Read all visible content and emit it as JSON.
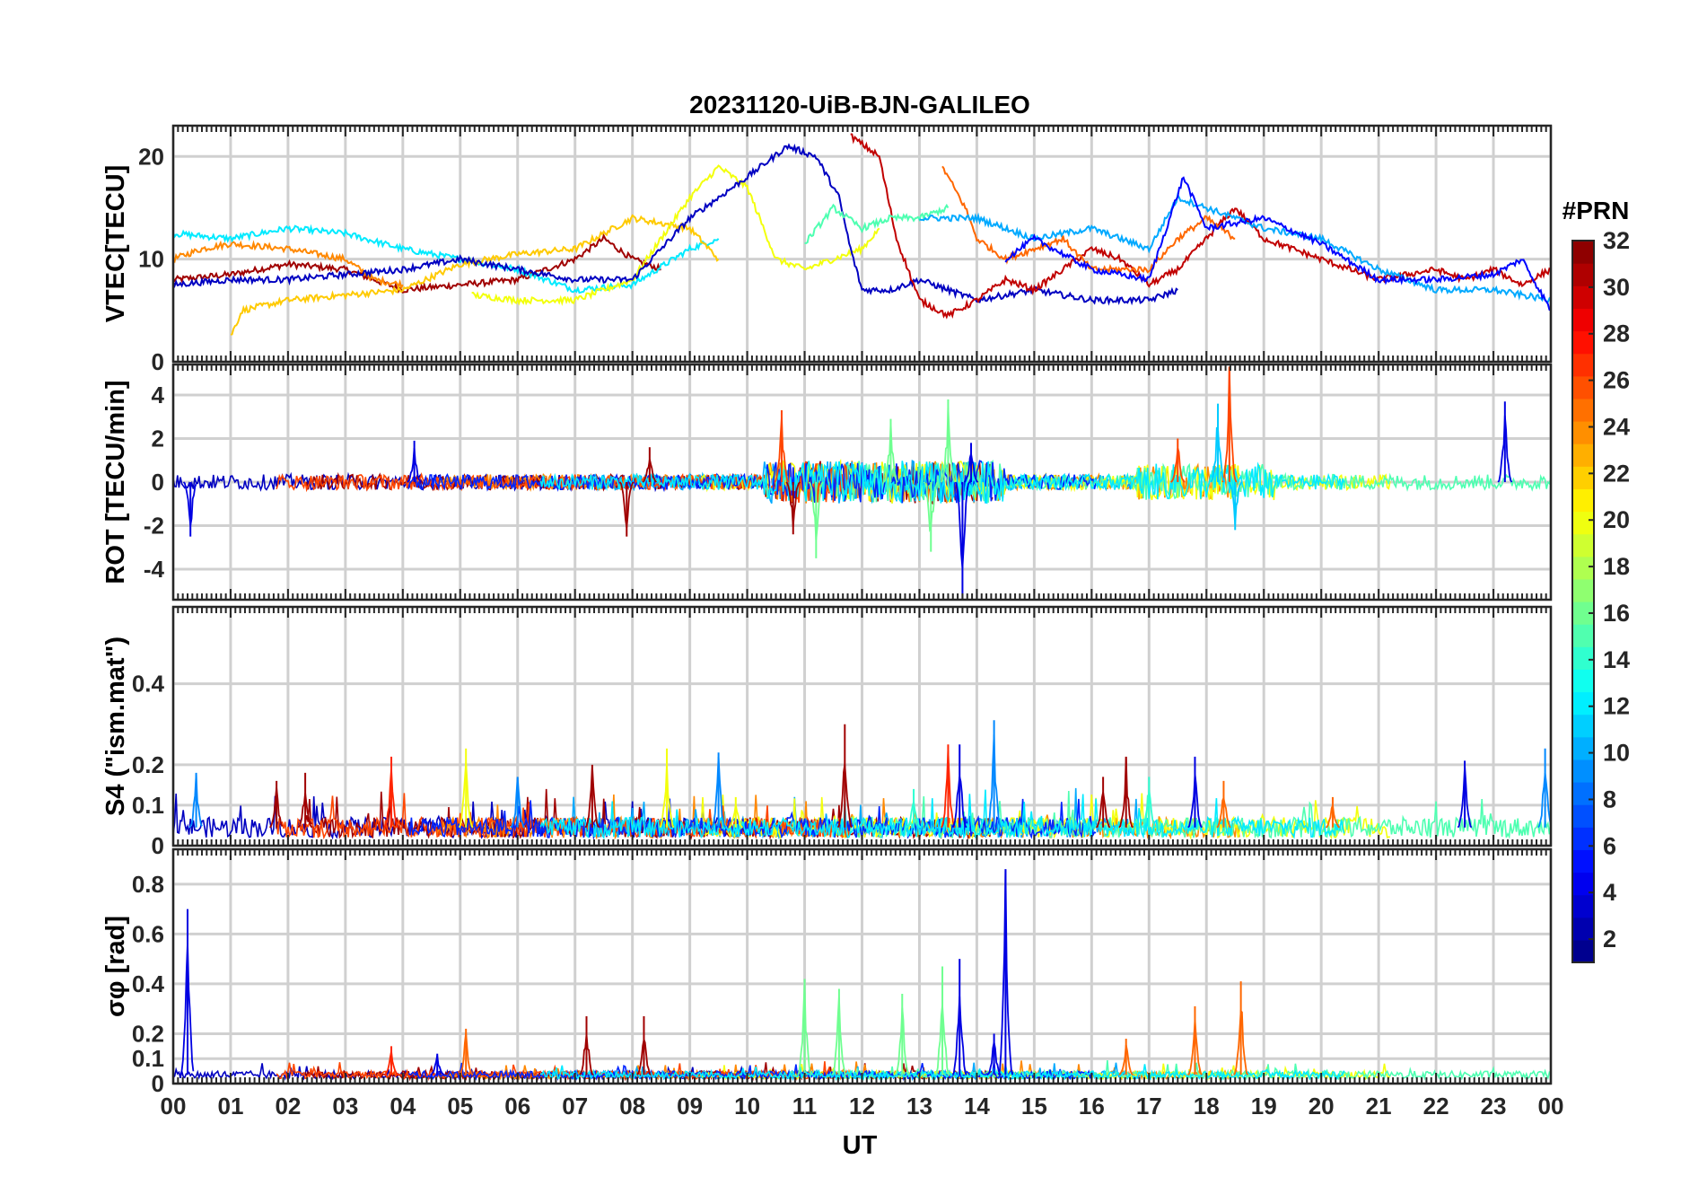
{
  "chart_data": {
    "type": "line",
    "title": "20231120-UiB-BJN-GALILEO",
    "xlabel": "UT",
    "x_ticks": [
      "00",
      "01",
      "02",
      "03",
      "04",
      "05",
      "06",
      "07",
      "08",
      "09",
      "10",
      "11",
      "12",
      "13",
      "14",
      "15",
      "16",
      "17",
      "18",
      "19",
      "20",
      "21",
      "22",
      "23",
      "00"
    ],
    "xlim": [
      0,
      24
    ],
    "colorbar": {
      "title": "#PRN",
      "range": [
        1,
        32
      ],
      "ticks": [
        "2",
        "4",
        "6",
        "8",
        "10",
        "12",
        "14",
        "16",
        "18",
        "20",
        "22",
        "24",
        "26",
        "28",
        "30",
        "32"
      ],
      "colormap": "jet"
    },
    "panels": [
      {
        "id": "vtec",
        "ylabel": "VTEC[TECU]",
        "ylim": [
          0,
          23
        ],
        "yticks": [
          "0",
          "10",
          "20"
        ],
        "series": [
          {
            "prn": 31,
            "values": [
              [
                0,
                8
              ],
              [
                1,
                8.5
              ],
              [
                2,
                9.5
              ],
              [
                3,
                9
              ],
              [
                4,
                7
              ],
              [
                5,
                7.5
              ],
              [
                6,
                8
              ],
              [
                7,
                10
              ],
              [
                7.5,
                12
              ],
              [
                8,
                10
              ],
              [
                8.5,
                9
              ]
            ]
          },
          {
            "prn": 24,
            "values": [
              [
                0,
                10
              ],
              [
                0.5,
                11
              ],
              [
                1,
                11.5
              ],
              [
                2,
                11
              ],
              [
                2.5,
                10.5
              ],
              [
                3,
                10
              ],
              [
                3.5,
                8
              ],
              [
                4,
                7.5
              ]
            ]
          },
          {
            "prn": 12,
            "values": [
              [
                0,
                12.5
              ],
              [
                1,
                12
              ],
              [
                2,
                13
              ],
              [
                3,
                12.5
              ],
              [
                4,
                11
              ],
              [
                5,
                10
              ],
              [
                6,
                9
              ],
              [
                7,
                7
              ],
              [
                8,
                7.5
              ],
              [
                9,
                11
              ],
              [
                9.5,
                12
              ]
            ]
          },
          {
            "prn": 22,
            "values": [
              [
                1,
                2.5
              ],
              [
                1.2,
                5
              ],
              [
                2,
                6
              ],
              [
                3,
                6.5
              ],
              [
                4,
                7
              ],
              [
                5,
                9.5
              ],
              [
                6,
                10.5
              ],
              [
                7,
                11
              ],
              [
                8,
                14
              ],
              [
                9,
                13
              ],
              [
                9.5,
                10
              ]
            ]
          },
          {
            "prn": 20,
            "values": [
              [
                5.2,
                6.5
              ],
              [
                6,
                6
              ],
              [
                7,
                6
              ],
              [
                8,
                8
              ],
              [
                9,
                16
              ],
              [
                9.5,
                19
              ],
              [
                10,
                17
              ],
              [
                10.5,
                10
              ],
              [
                11,
                9
              ],
              [
                12,
                11
              ],
              [
                12.3,
                13
              ]
            ]
          },
          {
            "prn": 3,
            "values": [
              [
                0,
                7.5
              ],
              [
                1,
                8
              ],
              [
                2,
                8
              ],
              [
                3,
                8.5
              ],
              [
                4,
                9
              ],
              [
                5,
                10
              ],
              [
                6,
                9
              ],
              [
                7,
                8
              ],
              [
                8,
                8
              ],
              [
                9,
                14
              ],
              [
                10,
                18
              ],
              [
                10.7,
                21
              ],
              [
                11.2,
                20
              ],
              [
                11.6,
                16
              ],
              [
                11.8,
                11
              ],
              [
                12,
                7
              ],
              [
                12.5,
                7
              ],
              [
                13,
                8
              ],
              [
                13.5,
                7
              ],
              [
                14,
                6
              ],
              [
                15,
                7
              ],
              [
                16,
                6
              ],
              [
                17,
                6
              ],
              [
                17.5,
                7
              ]
            ]
          },
          {
            "prn": 30,
            "values": [
              [
                11.8,
                22
              ],
              [
                12.3,
                20
              ],
              [
                12.6,
                12
              ],
              [
                13,
                6
              ],
              [
                13.5,
                4.5
              ],
              [
                14,
                6
              ],
              [
                14.5,
                8
              ],
              [
                15,
                7
              ],
              [
                15.5,
                9
              ],
              [
                16,
                11
              ],
              [
                16.5,
                10
              ],
              [
                17,
                7.5
              ],
              [
                17.5,
                9
              ],
              [
                18,
                12
              ],
              [
                18.5,
                15
              ],
              [
                19,
                12
              ],
              [
                20,
                10
              ],
              [
                20.5,
                9
              ],
              [
                21,
                8
              ],
              [
                22,
                9
              ],
              [
                22.5,
                8
              ],
              [
                23,
                9
              ],
              [
                23.5,
                7.5
              ],
              [
                24,
                9
              ]
            ]
          },
          {
            "prn": 15,
            "values": [
              [
                11,
                11.5
              ],
              [
                11.5,
                15
              ],
              [
                12,
                13
              ],
              [
                12.5,
                14
              ],
              [
                13,
                14
              ],
              [
                13.5,
                15
              ]
            ]
          },
          {
            "prn": 25,
            "values": [
              [
                13.4,
                19
              ],
              [
                13.8,
                15
              ],
              [
                14,
                12
              ],
              [
                14.5,
                10
              ],
              [
                15,
                11
              ],
              [
                15.5,
                12
              ],
              [
                16,
                9
              ],
              [
                16.5,
                9
              ],
              [
                17,
                9
              ],
              [
                17.5,
                12
              ],
              [
                18,
                14
              ],
              [
                18.5,
                12
              ]
            ]
          },
          {
            "prn": 10,
            "values": [
              [
                13,
                14
              ],
              [
                14,
                14
              ],
              [
                15,
                12
              ],
              [
                16,
                13
              ],
              [
                17,
                11
              ],
              [
                17.5,
                16
              ],
              [
                18,
                15
              ],
              [
                19,
                13
              ],
              [
                20,
                12
              ],
              [
                21,
                9
              ],
              [
                22,
                7
              ],
              [
                23,
                7
              ],
              [
                24,
                6
              ]
            ]
          },
          {
            "prn": 5,
            "values": [
              [
                14.5,
                10
              ],
              [
                15,
                12
              ],
              [
                16,
                9
              ],
              [
                17,
                8
              ],
              [
                17.6,
                18
              ],
              [
                18,
                13
              ],
              [
                19,
                14
              ],
              [
                20,
                11.5
              ],
              [
                21,
                8
              ],
              [
                22,
                8
              ],
              [
                23,
                8.5
              ],
              [
                23.5,
                10
              ],
              [
                24,
                5
              ]
            ]
          }
        ]
      },
      {
        "id": "rot",
        "ylabel": "ROT [TECU/min]",
        "ylim": [
          -5.4,
          5.4
        ],
        "yticks": [
          "-4",
          "-2",
          "0",
          "2",
          "4"
        ],
        "series": [
          {
            "prn": 4,
            "spikes": [
              [
                0.3,
                -2.5
              ],
              [
                4.2,
                1.9
              ],
              [
                13.75,
                -5.4
              ],
              [
                13.9,
                1.8
              ],
              [
                23.2,
                3.7
              ]
            ]
          },
          {
            "prn": 26,
            "spikes": [
              [
                10.6,
                3.3
              ],
              [
                18.4,
                5.3
              ],
              [
                17.5,
                2.0
              ]
            ]
          },
          {
            "prn": 16,
            "spikes": [
              [
                11.2,
                -3.5
              ],
              [
                13.5,
                3.8
              ],
              [
                13.2,
                -3.2
              ],
              [
                12.5,
                2.9
              ]
            ]
          },
          {
            "prn": 31,
            "spikes": [
              [
                7.9,
                -2.5
              ],
              [
                8.3,
                1.6
              ],
              [
                10.8,
                -2.4
              ]
            ]
          },
          {
            "prn": 11,
            "spikes": [
              [
                18.2,
                3.6
              ],
              [
                18.5,
                -2.2
              ]
            ]
          }
        ]
      },
      {
        "id": "s4",
        "ylabel": "S4 (\"ism.mat\")",
        "ylim": [
          0,
          0.59
        ],
        "yticks": [
          "0",
          "0.1",
          "0.2",
          "0.4"
        ],
        "series": [
          {
            "prn": 31,
            "spikes": [
              [
                1.8,
                0.16
              ],
              [
                2.3,
                0.18
              ],
              [
                11.7,
                0.3
              ],
              [
                16.2,
                0.17
              ],
              [
                16.6,
                0.22
              ],
              [
                7.3,
                0.2
              ]
            ]
          },
          {
            "prn": 27,
            "spikes": [
              [
                3.8,
                0.22
              ],
              [
                13.5,
                0.25
              ]
            ]
          },
          {
            "prn": 20,
            "spikes": [
              [
                5.1,
                0.24
              ],
              [
                8.6,
                0.24
              ],
              [
                9.8,
                0.12
              ]
            ]
          },
          {
            "prn": 9,
            "spikes": [
              [
                0.4,
                0.18
              ],
              [
                6.0,
                0.17
              ],
              [
                9.5,
                0.23
              ],
              [
                14.3,
                0.31
              ],
              [
                23.9,
                0.24
              ]
            ]
          },
          {
            "prn": 4,
            "spikes": [
              [
                13.7,
                0.25
              ],
              [
                17.8,
                0.22
              ],
              [
                22.5,
                0.21
              ]
            ]
          },
          {
            "prn": 14,
            "spikes": [
              [
                17,
                0.17
              ],
              [
                12.9,
                0.14
              ]
            ]
          },
          {
            "prn": 25,
            "spikes": [
              [
                18.3,
                0.16
              ],
              [
                20.2,
                0.12
              ]
            ]
          }
        ]
      },
      {
        "id": "sigma_phi",
        "ylabel": "σφ [rad]",
        "ylim": [
          0,
          0.94
        ],
        "yticks": [
          "0",
          "0.1",
          "0.2",
          "0.4",
          "0.6",
          "0.8"
        ],
        "series": [
          {
            "prn": 4,
            "spikes": [
              [
                0.25,
                0.7
              ],
              [
                4.6,
                0.12
              ],
              [
                13.7,
                0.5
              ],
              [
                14.5,
                0.86
              ],
              [
                14.3,
                0.2
              ]
            ]
          },
          {
            "prn": 16,
            "spikes": [
              [
                11,
                0.42
              ],
              [
                11.6,
                0.38
              ],
              [
                12.7,
                0.36
              ],
              [
                13.4,
                0.47
              ]
            ]
          },
          {
            "prn": 31,
            "spikes": [
              [
                7.2,
                0.27
              ],
              [
                8.2,
                0.27
              ]
            ]
          },
          {
            "prn": 25,
            "spikes": [
              [
                17.8,
                0.31
              ],
              [
                18.6,
                0.41
              ],
              [
                5.1,
                0.22
              ],
              [
                16.6,
                0.18
              ]
            ]
          },
          {
            "prn": 27,
            "spikes": [
              [
                3.8,
                0.15
              ]
            ]
          }
        ]
      }
    ]
  }
}
